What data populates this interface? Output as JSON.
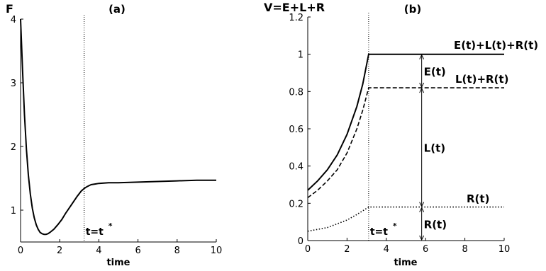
{
  "chart_data": [
    {
      "type": "line",
      "panel_label": "(a)",
      "ylabel": "F",
      "xlabel": "time",
      "xlim": [
        0,
        10
      ],
      "ylim": [
        0.5,
        4
      ],
      "xticks": [
        0,
        2,
        4,
        6,
        8,
        10
      ],
      "yticks": [
        1,
        2,
        3,
        4
      ],
      "marker_x": 3.25,
      "marker_label": "t=t",
      "marker_sup": "*",
      "series": [
        {
          "style": "solid",
          "x": [
            0,
            0.1,
            0.2,
            0.3,
            0.4,
            0.5,
            0.6,
            0.7,
            0.8,
            0.9,
            1.0,
            1.1,
            1.2,
            1.3,
            1.4,
            1.5,
            1.7,
            1.9,
            2.1,
            2.3,
            2.5,
            2.7,
            2.9,
            3.1,
            3.25,
            3.4,
            3.6,
            3.8,
            4.0,
            4.5,
            5.0,
            6.0,
            7.0,
            8.0,
            9.0,
            10.0
          ],
          "y": [
            4.0,
            3.2,
            2.5,
            1.95,
            1.55,
            1.25,
            1.03,
            0.88,
            0.77,
            0.7,
            0.65,
            0.63,
            0.62,
            0.62,
            0.63,
            0.65,
            0.7,
            0.77,
            0.85,
            0.95,
            1.04,
            1.13,
            1.22,
            1.3,
            1.34,
            1.37,
            1.4,
            1.41,
            1.42,
            1.43,
            1.43,
            1.44,
            1.45,
            1.46,
            1.47,
            1.47
          ]
        }
      ]
    },
    {
      "type": "line",
      "panel_label": "(b)",
      "ylabel": "V=E+L+R",
      "xlabel": "time",
      "xlim": [
        0,
        10
      ],
      "ylim": [
        0,
        1.2
      ],
      "xticks": [
        0,
        2,
        4,
        6,
        8,
        10
      ],
      "yticks": [
        0,
        0.2,
        0.4,
        0.6,
        0.8,
        1,
        1.2
      ],
      "ytick_labels": [
        "0",
        "0.2",
        "0.4",
        "0.6",
        "0.8",
        "1",
        "1.2"
      ],
      "marker_x": 3.1,
      "marker_label": "t=t",
      "marker_sup": "*",
      "series": [
        {
          "name": "E(t)+L(t)+R(t)",
          "style": "solid",
          "x": [
            0,
            0.5,
            1.0,
            1.5,
            2.0,
            2.5,
            2.8,
            3.1,
            4,
            6,
            8,
            10
          ],
          "y": [
            0.27,
            0.32,
            0.38,
            0.46,
            0.57,
            0.72,
            0.84,
            1.0,
            1.0,
            1.0,
            1.0,
            1.0
          ]
        },
        {
          "name": "L(t)+R(t)",
          "style": "dashed",
          "x": [
            0,
            0.5,
            1.0,
            1.5,
            2.0,
            2.5,
            2.8,
            3.1,
            4,
            6,
            8,
            10
          ],
          "y": [
            0.23,
            0.27,
            0.32,
            0.38,
            0.47,
            0.6,
            0.7,
            0.82,
            0.82,
            0.82,
            0.82,
            0.82
          ]
        },
        {
          "name": "R(t)",
          "style": "dotted",
          "x": [
            0,
            0.5,
            1.0,
            1.5,
            2.0,
            2.5,
            2.8,
            3.1,
            4,
            6,
            8,
            10
          ],
          "y": [
            0.05,
            0.06,
            0.07,
            0.09,
            0.11,
            0.14,
            0.16,
            0.18,
            0.18,
            0.18,
            0.18,
            0.18
          ]
        }
      ],
      "annotations": [
        {
          "label": "E(t)",
          "x": 5.8,
          "y_from": 1.0,
          "y_to": 0.82
        },
        {
          "label": "L(t)",
          "x": 5.8,
          "y_from": 0.82,
          "y_to": 0.18
        },
        {
          "label": "R(t)",
          "x": 5.8,
          "y_from": 0.18,
          "y_to": 0.0
        }
      ]
    }
  ]
}
